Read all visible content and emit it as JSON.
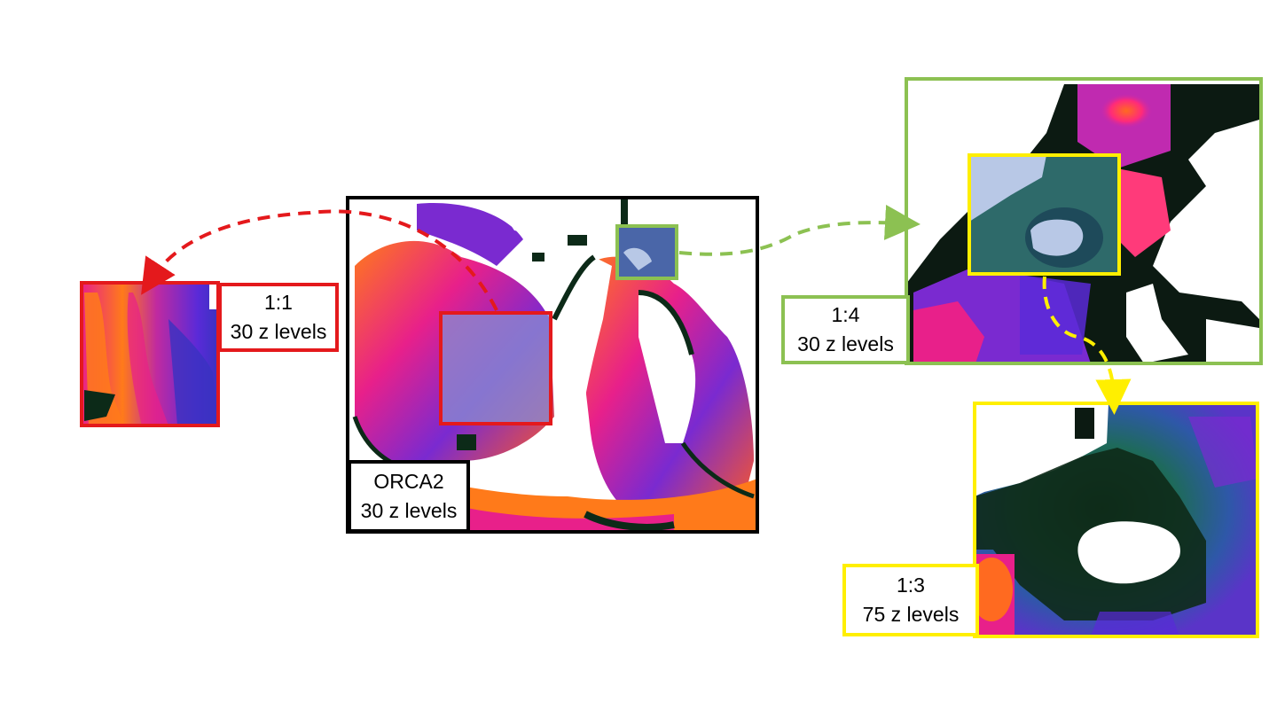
{
  "colors": {
    "red": "#e4191c",
    "green": "#8cc152",
    "yellow": "#ffef00",
    "black": "#000000"
  },
  "panels": {
    "global": {
      "line1": "ORCA2",
      "line2": "30 z levels"
    },
    "red_zoom": {
      "line1": "1:1",
      "line2": "30 z levels"
    },
    "green_zoom": {
      "line1": "1:4",
      "line2": "30 z levels"
    },
    "yellow_zoom": {
      "line1": "1:3",
      "line2": "75 z levels"
    }
  }
}
